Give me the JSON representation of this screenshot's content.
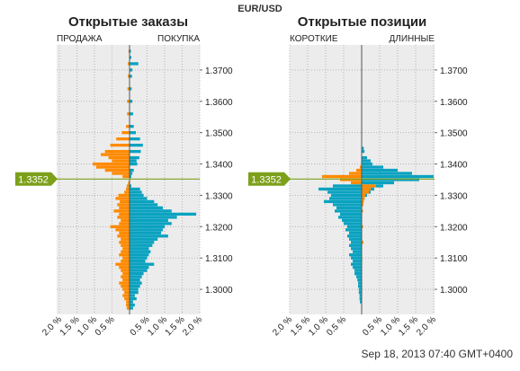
{
  "header": {
    "symbol": "EUR/USD"
  },
  "footer": {
    "timestamp": "Sep 18, 2013 07:40 GMT+0400"
  },
  "colors": {
    "sell": "#ff8a00",
    "buy": "#0aa2c0",
    "price_line": "#7ca01a",
    "panel_bg": "#ececec",
    "grid": "#b5b5b5"
  },
  "price_marker": "1.3352",
  "chart_data": [
    {
      "type": "bar",
      "orientation": "horizontal-butterfly",
      "title": "Открытые заказы",
      "left_label": "ПРОДАЖА",
      "right_label": "ПОКУПКА",
      "x_tick_labels": [
        "2.0 %",
        "1.5 %",
        "1.0 %",
        "0.5 %",
        "0.5 %",
        "1.0 %",
        "1.5 %",
        "2.0 %"
      ],
      "x_ticks_pct": [
        -2.0,
        -1.5,
        -1.0,
        -0.5,
        0.5,
        1.0,
        1.5,
        2.0
      ],
      "xlim": [
        -2.0,
        2.0
      ],
      "ylim": [
        1.292,
        1.378
      ],
      "y_tick_values": [
        1.37,
        1.36,
        1.35,
        1.34,
        1.33,
        1.32,
        1.31,
        1.3
      ],
      "y_tick_labels": [
        "1.3700",
        "1.3600",
        "1.3500",
        "1.3400",
        "1.3300",
        "1.3200",
        "1.3100",
        "1.3000"
      ],
      "current_price": 1.3352,
      "series": [
        {
          "name": "ПРОДАЖА",
          "color": "#ff8a00",
          "levels": [
            [
              1.376,
              0.03
            ],
            [
              1.372,
              0.05
            ],
            [
              1.368,
              0.05
            ],
            [
              1.364,
              0.06
            ],
            [
              1.36,
              0.07
            ],
            [
              1.356,
              0.07
            ],
            [
              1.352,
              0.1
            ],
            [
              1.35,
              0.22
            ],
            [
              1.348,
              0.38
            ],
            [
              1.346,
              0.55
            ],
            [
              1.344,
              0.7
            ],
            [
              1.343,
              0.82
            ],
            [
              1.342,
              0.6
            ],
            [
              1.341,
              0.5
            ],
            [
              1.34,
              1.05
            ],
            [
              1.339,
              0.95
            ],
            [
              1.338,
              0.7
            ],
            [
              1.337,
              0.5
            ],
            [
              1.336,
              0.2
            ],
            [
              1.334,
              0.04
            ],
            [
              1.333,
              0.08
            ],
            [
              1.332,
              0.1
            ],
            [
              1.331,
              0.15
            ],
            [
              1.33,
              0.32
            ],
            [
              1.329,
              0.4
            ],
            [
              1.328,
              0.28
            ],
            [
              1.327,
              0.35
            ],
            [
              1.326,
              0.3
            ],
            [
              1.325,
              0.45
            ],
            [
              1.324,
              0.3
            ],
            [
              1.323,
              0.35
            ],
            [
              1.322,
              0.25
            ],
            [
              1.321,
              0.3
            ],
            [
              1.32,
              0.55
            ],
            [
              1.319,
              0.4
            ],
            [
              1.318,
              0.3
            ],
            [
              1.317,
              0.35
            ],
            [
              1.316,
              0.25
            ],
            [
              1.315,
              0.3
            ],
            [
              1.314,
              0.25
            ],
            [
              1.313,
              0.2
            ],
            [
              1.312,
              0.25
            ],
            [
              1.311,
              0.3
            ],
            [
              1.31,
              0.2
            ],
            [
              1.309,
              0.25
            ],
            [
              1.308,
              0.4
            ],
            [
              1.307,
              0.3
            ],
            [
              1.306,
              0.25
            ],
            [
              1.305,
              0.2
            ],
            [
              1.304,
              0.25
            ],
            [
              1.303,
              0.2
            ],
            [
              1.302,
              0.3
            ],
            [
              1.301,
              0.25
            ],
            [
              1.3,
              0.2
            ],
            [
              1.299,
              0.15
            ],
            [
              1.298,
              0.2
            ],
            [
              1.297,
              0.15
            ],
            [
              1.296,
              0.1
            ],
            [
              1.295,
              0.1
            ],
            [
              1.294,
              0.08
            ]
          ]
        },
        {
          "name": "ПОКУПКА",
          "color": "#0aa2c0",
          "levels": [
            [
              1.376,
              0.04
            ],
            [
              1.374,
              0.05
            ],
            [
              1.372,
              0.25
            ],
            [
              1.37,
              0.08
            ],
            [
              1.368,
              0.07
            ],
            [
              1.364,
              0.06
            ],
            [
              1.36,
              0.08
            ],
            [
              1.356,
              0.1
            ],
            [
              1.352,
              0.12
            ],
            [
              1.35,
              0.18
            ],
            [
              1.348,
              0.3
            ],
            [
              1.346,
              0.38
            ],
            [
              1.344,
              0.32
            ],
            [
              1.342,
              0.28
            ],
            [
              1.341,
              0.2
            ],
            [
              1.34,
              0.22
            ],
            [
              1.338,
              0.12
            ],
            [
              1.337,
              0.08
            ],
            [
              1.336,
              0.05
            ],
            [
              1.333,
              0.05
            ],
            [
              1.332,
              0.3
            ],
            [
              1.331,
              0.35
            ],
            [
              1.33,
              0.4
            ],
            [
              1.329,
              0.5
            ],
            [
              1.328,
              0.7
            ],
            [
              1.327,
              0.8
            ],
            [
              1.326,
              0.95
            ],
            [
              1.325,
              1.2
            ],
            [
              1.324,
              1.9
            ],
            [
              1.323,
              1.35
            ],
            [
              1.322,
              1.1
            ],
            [
              1.321,
              1.2
            ],
            [
              1.32,
              1.0
            ],
            [
              1.319,
              0.95
            ],
            [
              1.318,
              0.9
            ],
            [
              1.317,
              1.1
            ],
            [
              1.316,
              0.8
            ],
            [
              1.315,
              0.7
            ],
            [
              1.314,
              0.65
            ],
            [
              1.313,
              0.55
            ],
            [
              1.312,
              0.6
            ],
            [
              1.311,
              0.55
            ],
            [
              1.31,
              0.5
            ],
            [
              1.309,
              0.45
            ],
            [
              1.308,
              0.7
            ],
            [
              1.307,
              0.55
            ],
            [
              1.306,
              0.5
            ],
            [
              1.305,
              0.4
            ],
            [
              1.304,
              0.35
            ],
            [
              1.303,
              0.3
            ],
            [
              1.302,
              0.35
            ],
            [
              1.301,
              0.3
            ],
            [
              1.3,
              0.25
            ],
            [
              1.299,
              0.25
            ],
            [
              1.298,
              0.15
            ],
            [
              1.297,
              0.2
            ],
            [
              1.296,
              0.1
            ],
            [
              1.295,
              0.15
            ],
            [
              1.294,
              0.1
            ]
          ]
        }
      ]
    },
    {
      "type": "bar",
      "orientation": "horizontal-butterfly",
      "title": "Открытые позиции",
      "left_label": "КОРОТКИЕ",
      "right_label": "ДЛИННЫЕ",
      "x_tick_labels": [
        "2.0 %",
        "1.5 %",
        "1.0 %",
        "0.5 %",
        "0.5 %",
        "1.0 %",
        "1.5 %",
        "2.0 %"
      ],
      "x_ticks_pct": [
        -2.0,
        -1.5,
        -1.0,
        -0.5,
        0.5,
        1.0,
        1.5,
        2.0
      ],
      "xlim": [
        -2.0,
        2.0
      ],
      "ylim": [
        1.292,
        1.378
      ],
      "y_tick_values": [
        1.37,
        1.36,
        1.35,
        1.34,
        1.33,
        1.32,
        1.31,
        1.3
      ],
      "y_tick_labels": [
        "1.3700",
        "1.3600",
        "1.3500",
        "1.3400",
        "1.3300",
        "1.3200",
        "1.3100",
        "1.3000"
      ],
      "current_price": 1.3352,
      "series": [
        {
          "name": "КОРОТКИЕ",
          "color": "#ff8a00",
          "levels": [
            [
              1.339,
              0.05
            ],
            [
              1.338,
              0.15
            ],
            [
              1.337,
              0.35
            ],
            [
              1.336,
              1.1
            ],
            [
              1.335,
              0.6
            ],
            [
              1.334,
              0.3
            ],
            [
              1.333,
              0.1
            ],
            [
              1.332,
              0.05
            ]
          ]
        },
        {
          "name": "ДЛИННЫЕ",
          "color": "#0aa2c0",
          "levels": [
            [
              1.345,
              0.06
            ],
            [
              1.344,
              0.08
            ],
            [
              1.342,
              0.15
            ],
            [
              1.341,
              0.25
            ],
            [
              1.34,
              0.3
            ],
            [
              1.339,
              0.6
            ],
            [
              1.338,
              1.0
            ],
            [
              1.337,
              1.4
            ],
            [
              1.336,
              2.0
            ],
            [
              1.335,
              1.6
            ],
            [
              1.334,
              0.9
            ],
            [
              1.333,
              0.6
            ],
            [
              1.332,
              0.35
            ],
            [
              1.331,
              0.25
            ],
            [
              1.33,
              0.15
            ],
            [
              1.329,
              0.08
            ],
            [
              1.328,
              0.05
            ]
          ]
        },
        {
          "name": "КОРОТКИЕ",
          "color": "#0aa2c0",
          "levels": [
            [
              1.333,
              0.8
            ],
            [
              1.332,
              1.2
            ],
            [
              1.331,
              0.95
            ],
            [
              1.33,
              0.85
            ],
            [
              1.329,
              0.9
            ],
            [
              1.328,
              1.05
            ],
            [
              1.327,
              0.8
            ],
            [
              1.326,
              0.7
            ],
            [
              1.325,
              0.75
            ],
            [
              1.324,
              0.6
            ],
            [
              1.323,
              0.65
            ],
            [
              1.322,
              0.55
            ],
            [
              1.321,
              0.5
            ],
            [
              1.32,
              0.4
            ],
            [
              1.319,
              0.45
            ],
            [
              1.318,
              0.35
            ],
            [
              1.317,
              0.4
            ],
            [
              1.316,
              0.35
            ],
            [
              1.315,
              0.3
            ],
            [
              1.314,
              0.35
            ],
            [
              1.313,
              0.3
            ],
            [
              1.312,
              0.25
            ],
            [
              1.311,
              0.35
            ],
            [
              1.31,
              0.3
            ],
            [
              1.309,
              0.25
            ],
            [
              1.308,
              0.3
            ],
            [
              1.307,
              0.25
            ],
            [
              1.306,
              0.2
            ],
            [
              1.305,
              0.2
            ],
            [
              1.304,
              0.15
            ],
            [
              1.303,
              0.12
            ],
            [
              1.302,
              0.1
            ],
            [
              1.301,
              0.1
            ],
            [
              1.3,
              0.08
            ],
            [
              1.299,
              0.08
            ],
            [
              1.298,
              0.06
            ],
            [
              1.297,
              0.06
            ],
            [
              1.296,
              0.05
            ]
          ]
        },
        {
          "name": "ДЛИННЫЕ",
          "color": "#ff8a00",
          "levels": [
            [
              1.333,
              0.4
            ],
            [
              1.332,
              0.25
            ],
            [
              1.331,
              0.2
            ],
            [
              1.33,
              0.1
            ],
            [
              1.329,
              0.08
            ],
            [
              1.328,
              0.06
            ],
            [
              1.327,
              0.05
            ],
            [
              1.325,
              0.04
            ],
            [
              1.32,
              0.04
            ],
            [
              1.315,
              0.05
            ]
          ]
        }
      ]
    }
  ]
}
